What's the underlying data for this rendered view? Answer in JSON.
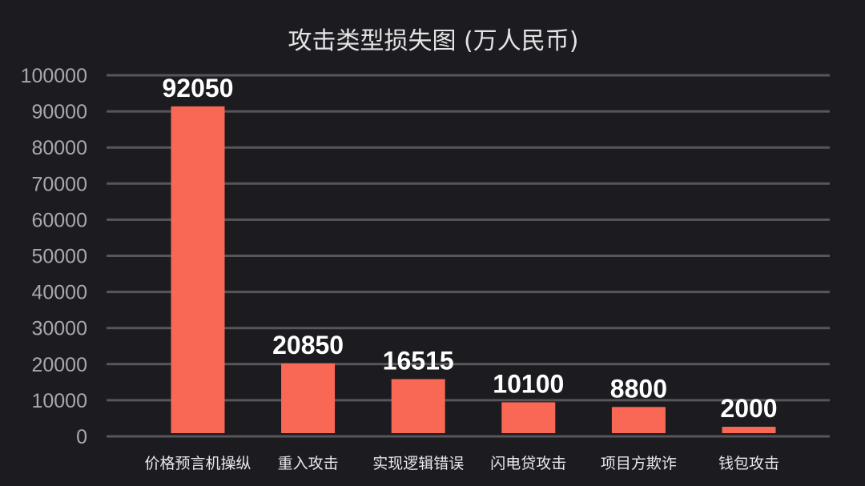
{
  "chart_data": {
    "type": "bar",
    "title": "攻击类型损失图 (万人民币)",
    "xlabel": "",
    "ylabel": "",
    "categories": [
      "价格预言机操纵",
      "重入攻击",
      "实现逻辑错误",
      "闪电贷攻击",
      "项目方欺诈",
      "钱包攻击"
    ],
    "values": [
      92050,
      20850,
      16515,
      10100,
      8800,
      2000
    ],
    "data_labels": [
      "92050",
      "20850",
      "16515",
      "10100",
      "8800",
      "2000"
    ],
    "ylim": [
      0,
      100000
    ],
    "yticks": [
      "0",
      "10000",
      "20000",
      "30000",
      "40000",
      "50000",
      "60000",
      "70000",
      "80000",
      "90000",
      "100000"
    ],
    "grid": true,
    "legend": "none",
    "colors": {
      "background": "#1c1b20",
      "bar": "#f96755",
      "grid": "#56565b",
      "tick_text": "#a9a9ad",
      "category_text": "#e9e9eb",
      "label_text": "#ffffff",
      "title_text": "#e4e4e6"
    }
  }
}
